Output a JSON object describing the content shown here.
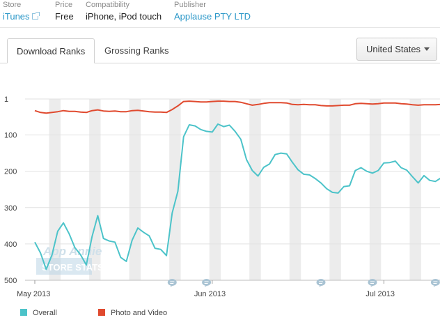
{
  "info": {
    "store": {
      "label": "Store",
      "value": "iTunes"
    },
    "price": {
      "label": "Price",
      "value": "Free"
    },
    "compatibility": {
      "label": "Compatibility",
      "value": "iPhone, iPod touch"
    },
    "publisher": {
      "label": "Publisher",
      "value": "Applause PTY LTD"
    }
  },
  "tabs": [
    {
      "label": "Download Ranks",
      "active": true
    },
    {
      "label": "Grossing Ranks",
      "active": false
    }
  ],
  "country_select": {
    "value": "United States"
  },
  "watermark": {
    "line1": "App Annie",
    "line2": "STORE STATS"
  },
  "colors": {
    "overall": "#4cc3c9",
    "photo_video": "#e04a2f",
    "accent": "#2a97c8",
    "weekend_band": "#ececec"
  },
  "chart_data": {
    "type": "line",
    "x_start": "2013-05-01",
    "x_tick_labels": [
      {
        "date": "2013-05-01",
        "label": "May 2013"
      },
      {
        "date": "2013-06-01",
        "label": "Jun 2013"
      },
      {
        "date": "2013-07-01",
        "label": "Jul 2013"
      }
    ],
    "y_tick_labels": [
      "1",
      "100",
      "200",
      "300",
      "400",
      "500"
    ],
    "y_ticks": [
      1,
      100,
      200,
      300,
      400,
      500
    ],
    "ylim": [
      500,
      1
    ],
    "y_inverted": true,
    "weekend_bands": true,
    "annotation_markers": [
      "2013-05-25",
      "2013-05-31",
      "2013-06-20",
      "2013-06-29",
      "2013-07-10"
    ],
    "legend_position": "bottom-left",
    "series": [
      {
        "name": "Overall",
        "color": "#4cc3c9",
        "points": [
          [
            "2013-05-01",
            395
          ],
          [
            "2013-05-02",
            425
          ],
          [
            "2013-05-03",
            470
          ],
          [
            "2013-05-04",
            430
          ],
          [
            "2013-05-05",
            365
          ],
          [
            "2013-05-06",
            342
          ],
          [
            "2013-05-07",
            372
          ],
          [
            "2013-05-08",
            410
          ],
          [
            "2013-05-09",
            430
          ],
          [
            "2013-05-10",
            458
          ],
          [
            "2013-05-11",
            380
          ],
          [
            "2013-05-12",
            322
          ],
          [
            "2013-05-13",
            385
          ],
          [
            "2013-05-14",
            392
          ],
          [
            "2013-05-15",
            395
          ],
          [
            "2013-05-16",
            437
          ],
          [
            "2013-05-17",
            448
          ],
          [
            "2013-05-18",
            390
          ],
          [
            "2013-05-19",
            356
          ],
          [
            "2013-05-20",
            368
          ],
          [
            "2013-05-21",
            378
          ],
          [
            "2013-05-22",
            412
          ],
          [
            "2013-05-23",
            415
          ],
          [
            "2013-05-24",
            432
          ],
          [
            "2013-05-25",
            315
          ],
          [
            "2013-05-26",
            255
          ],
          [
            "2013-05-27",
            105
          ],
          [
            "2013-05-28",
            72
          ],
          [
            "2013-05-29",
            75
          ],
          [
            "2013-05-30",
            85
          ],
          [
            "2013-05-31",
            90
          ],
          [
            "2013-06-01",
            92
          ],
          [
            "2013-06-02",
            70
          ],
          [
            "2013-06-03",
            77
          ],
          [
            "2013-06-04",
            73
          ],
          [
            "2013-06-05",
            90
          ],
          [
            "2013-06-06",
            112
          ],
          [
            "2013-06-07",
            168
          ],
          [
            "2013-06-08",
            198
          ],
          [
            "2013-06-09",
            213
          ],
          [
            "2013-06-10",
            189
          ],
          [
            "2013-06-11",
            180
          ],
          [
            "2013-06-12",
            154
          ],
          [
            "2013-06-13",
            150
          ],
          [
            "2013-06-14",
            152
          ],
          [
            "2013-06-15",
            175
          ],
          [
            "2013-06-16",
            196
          ],
          [
            "2013-06-17",
            208
          ],
          [
            "2013-06-18",
            210
          ],
          [
            "2013-06-19",
            220
          ],
          [
            "2013-06-20",
            232
          ],
          [
            "2013-06-21",
            248
          ],
          [
            "2013-06-22",
            258
          ],
          [
            "2013-06-23",
            260
          ],
          [
            "2013-06-24",
            242
          ],
          [
            "2013-06-25",
            240
          ],
          [
            "2013-06-26",
            198
          ],
          [
            "2013-06-27",
            190
          ],
          [
            "2013-06-28",
            200
          ],
          [
            "2013-06-29",
            205
          ],
          [
            "2013-06-30",
            198
          ],
          [
            "2013-07-01",
            177
          ],
          [
            "2013-07-02",
            176
          ],
          [
            "2013-07-03",
            172
          ],
          [
            "2013-07-04",
            190
          ],
          [
            "2013-07-05",
            197
          ],
          [
            "2013-07-06",
            215
          ],
          [
            "2013-07-07",
            232
          ],
          [
            "2013-07-08",
            212
          ],
          [
            "2013-07-09",
            225
          ],
          [
            "2013-07-10",
            228
          ],
          [
            "2013-07-11",
            218
          ],
          [
            "2013-07-12",
            222
          ]
        ]
      },
      {
        "name": "Photo and Video",
        "color": "#e04a2f",
        "points": [
          [
            "2013-05-01",
            33
          ],
          [
            "2013-05-02",
            38
          ],
          [
            "2013-05-03",
            40
          ],
          [
            "2013-05-04",
            38
          ],
          [
            "2013-05-05",
            36
          ],
          [
            "2013-05-06",
            33
          ],
          [
            "2013-05-07",
            35
          ],
          [
            "2013-05-08",
            35
          ],
          [
            "2013-05-09",
            37
          ],
          [
            "2013-05-10",
            38
          ],
          [
            "2013-05-11",
            33
          ],
          [
            "2013-05-12",
            31
          ],
          [
            "2013-05-13",
            34
          ],
          [
            "2013-05-14",
            35
          ],
          [
            "2013-05-15",
            34
          ],
          [
            "2013-05-16",
            36
          ],
          [
            "2013-05-17",
            36
          ],
          [
            "2013-05-18",
            33
          ],
          [
            "2013-05-19",
            32
          ],
          [
            "2013-05-20",
            34
          ],
          [
            "2013-05-21",
            36
          ],
          [
            "2013-05-22",
            37
          ],
          [
            "2013-05-23",
            37
          ],
          [
            "2013-05-24",
            38
          ],
          [
            "2013-05-25",
            30
          ],
          [
            "2013-05-26",
            20
          ],
          [
            "2013-05-27",
            8
          ],
          [
            "2013-05-28",
            7
          ],
          [
            "2013-05-29",
            8
          ],
          [
            "2013-05-30",
            9
          ],
          [
            "2013-05-31",
            9
          ],
          [
            "2013-06-01",
            8
          ],
          [
            "2013-06-02",
            7
          ],
          [
            "2013-06-03",
            7
          ],
          [
            "2013-06-04",
            8
          ],
          [
            "2013-06-05",
            8
          ],
          [
            "2013-06-06",
            10
          ],
          [
            "2013-06-07",
            14
          ],
          [
            "2013-06-08",
            18
          ],
          [
            "2013-06-09",
            16
          ],
          [
            "2013-06-10",
            13
          ],
          [
            "2013-06-11",
            11
          ],
          [
            "2013-06-12",
            11
          ],
          [
            "2013-06-13",
            11
          ],
          [
            "2013-06-14",
            12
          ],
          [
            "2013-06-15",
            16
          ],
          [
            "2013-06-16",
            17
          ],
          [
            "2013-06-17",
            16
          ],
          [
            "2013-06-18",
            17
          ],
          [
            "2013-06-19",
            17
          ],
          [
            "2013-06-20",
            19
          ],
          [
            "2013-06-21",
            20
          ],
          [
            "2013-06-22",
            20
          ],
          [
            "2013-06-23",
            19
          ],
          [
            "2013-06-24",
            18
          ],
          [
            "2013-06-25",
            18
          ],
          [
            "2013-06-26",
            14
          ],
          [
            "2013-06-27",
            13
          ],
          [
            "2013-06-28",
            14
          ],
          [
            "2013-06-29",
            15
          ],
          [
            "2013-06-30",
            14
          ],
          [
            "2013-07-01",
            12
          ],
          [
            "2013-07-02",
            12
          ],
          [
            "2013-07-03",
            12
          ],
          [
            "2013-07-04",
            14
          ],
          [
            "2013-07-05",
            15
          ],
          [
            "2013-07-06",
            17
          ],
          [
            "2013-07-07",
            18
          ],
          [
            "2013-07-08",
            17
          ],
          [
            "2013-07-09",
            17
          ],
          [
            "2013-07-10",
            17
          ],
          [
            "2013-07-11",
            16
          ],
          [
            "2013-07-12",
            16
          ]
        ]
      }
    ]
  }
}
